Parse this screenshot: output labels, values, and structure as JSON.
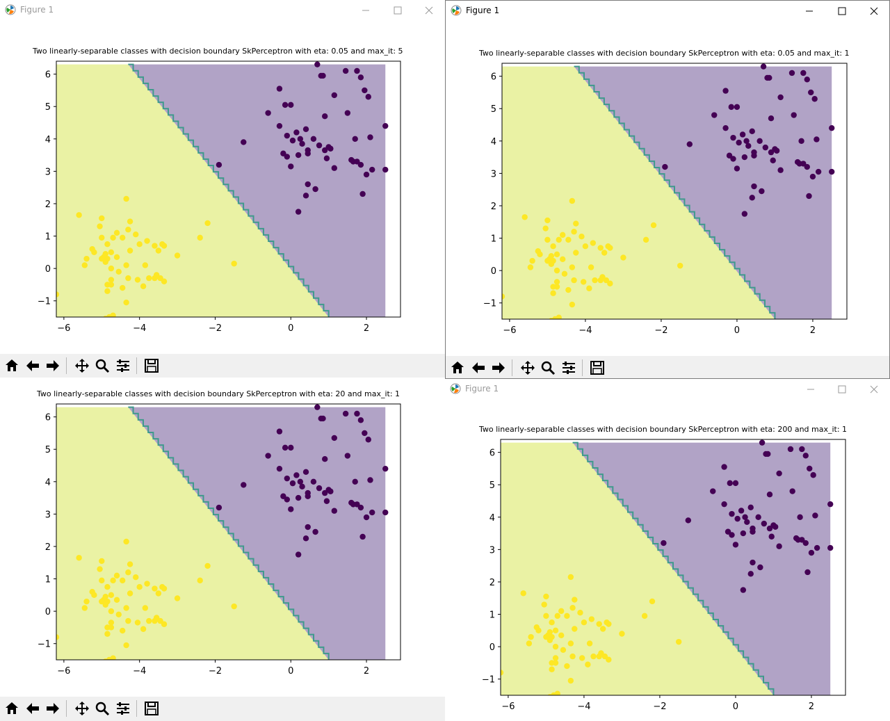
{
  "windows": [
    {
      "id": "w1",
      "title": "Figure 1",
      "active": false,
      "chart_title": "Two linearly-separable classes with decision boundary SkPerceptron with eta: 0.05 and max_it: 5"
    },
    {
      "id": "w2",
      "title": "Figure 1",
      "active": true,
      "chart_title": "Two linearly-separable classes with decision boundary SkPerceptron with eta: 0.05 and max_it: 1"
    },
    {
      "id": "w3",
      "title": "",
      "active": false,
      "chart_title": "Two linearly-separable classes with decision boundary SkPerceptron with eta: 20 and max_it: 1"
    },
    {
      "id": "w4",
      "title": "Figure 1",
      "active": false,
      "chart_title": "Two linearly-separable classes with decision boundary SkPerceptron with eta: 200 and max_it: 1"
    }
  ],
  "toolbar": {
    "buttons": [
      "home-icon",
      "back-arrow-icon",
      "forward-arrow-icon",
      "pan-icon",
      "zoom-icon",
      "configure-subplots-icon",
      "save-icon"
    ]
  },
  "colors": {
    "region_purple": "#b1a3c6",
    "region_yellow": "#eaf2a4",
    "boundary": "#3f9a8c",
    "class_purple": "#440154",
    "class_yellow": "#fde725"
  },
  "chart_data": {
    "type": "scatter",
    "xlim": [
      -6.2,
      2.9
    ],
    "ylim": [
      -1.5,
      6.4
    ],
    "xticks": [
      "−6",
      "−4",
      "−2",
      "0",
      "2"
    ],
    "yticks": [
      "−1",
      "0",
      "1",
      "2",
      "3",
      "4",
      "5",
      "6"
    ],
    "xtick_values": [
      -6,
      -4,
      -2,
      0,
      2
    ],
    "ytick_values": [
      -1,
      0,
      1,
      2,
      3,
      4,
      5,
      6
    ],
    "region_x": [
      -6.2,
      2.5
    ],
    "region_y": [
      -1.5,
      6.3
    ],
    "boundary_line": [
      [
        -4.3,
        6.3
      ],
      [
        1.0,
        -1.5
      ]
    ],
    "series": [
      {
        "class": "purple",
        "x": [
          0.7,
          0.8,
          0.85,
          1.45,
          1.75,
          1.85,
          1.95,
          2.05,
          2.1,
          2.5,
          -0.3,
          -0.15,
          0.0,
          1.15,
          -0.6,
          -0.3,
          0.9,
          1.5,
          0.6,
          -0.1,
          0.15,
          0.4,
          0.05,
          0.25,
          0.3,
          0.75,
          1.0,
          1.6,
          1.65,
          2.15,
          -0.2,
          0.2,
          0.45,
          0.45,
          0.9,
          1.05,
          -1.25,
          -0.1,
          0.95,
          1.15,
          1.7,
          1.75,
          2.0,
          2.5,
          -1.9,
          0.0,
          1.9,
          0.45,
          0.65,
          0.4,
          1.85,
          0.2
        ],
        "y": [
          6.3,
          5.95,
          5.95,
          6.1,
          6.1,
          5.9,
          5.5,
          5.3,
          4.05,
          4.4,
          5.55,
          5.05,
          5.05,
          5.35,
          4.8,
          4.4,
          4.7,
          4.8,
          4.0,
          4.1,
          4.2,
          4.3,
          3.95,
          4.0,
          3.85,
          3.8,
          3.75,
          3.35,
          3.3,
          3.05,
          3.55,
          3.5,
          3.55,
          3.65,
          3.65,
          3.7,
          3.9,
          3.45,
          3.4,
          3.1,
          4.0,
          3.3,
          2.9,
          3.05,
          3.2,
          3.15,
          2.3,
          2.6,
          2.45,
          2.25,
          3.2,
          1.75
        ]
      },
      {
        "class": "yellow",
        "x": [
          -4.35,
          -5.6,
          -5.0,
          -4.25,
          -5.05,
          -4.6,
          -4.1,
          -5.0,
          -4.85,
          -4.7,
          -4.45,
          -4.3,
          -4.0,
          -3.8,
          -3.6,
          -3.4,
          -2.4,
          -2.2,
          -4.95,
          -5.25,
          -5.2,
          -4.9,
          -4.85,
          -4.75,
          -4.6,
          -4.25,
          -3.0,
          -3.35,
          -5.4,
          -5.0,
          -4.9,
          -4.75,
          -4.55,
          -4.35,
          -3.85,
          -3.5,
          -1.5,
          -5.45,
          -4.85,
          -4.75,
          -4.3,
          -3.75,
          -3.55,
          -3.45,
          -3.35,
          -3.9,
          -4.85,
          -4.75,
          -4.45,
          -4.35,
          -4.8,
          -4.7,
          -4.9,
          -6.2,
          -4.05,
          -3.6
        ],
        "y": [
          2.15,
          1.65,
          1.55,
          1.45,
          1.3,
          1.1,
          1.05,
          0.95,
          0.75,
          0.95,
          0.95,
          1.2,
          0.75,
          0.85,
          0.7,
          0.75,
          0.95,
          1.4,
          0.35,
          0.6,
          0.5,
          0.45,
          0.3,
          0.5,
          0.35,
          0.55,
          0.4,
          0.7,
          0.3,
          0.3,
          0.2,
          0.0,
          -0.1,
          0.1,
          0.1,
          0.55,
          0.15,
          0.1,
          -0.5,
          -0.5,
          -0.3,
          -0.3,
          -0.2,
          -0.3,
          -0.4,
          -0.55,
          -0.7,
          -0.35,
          -0.6,
          -1.05,
          -1.5,
          -1.45,
          -1.55,
          -0.8,
          -0.35,
          -0.3
        ]
      }
    ]
  }
}
